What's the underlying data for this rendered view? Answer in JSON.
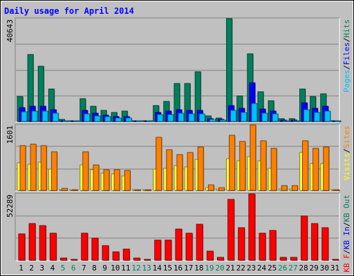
{
  "chart_data": [
    {
      "type": "bar",
      "panel": "hits",
      "title": "Daily usage for April 2014",
      "max_label": "40643",
      "ylim": [
        0,
        40643
      ],
      "grid": true,
      "categories": [
        "1",
        "2",
        "3",
        "4",
        "5",
        "6",
        "7",
        "8",
        "9",
        "10",
        "11",
        "12",
        "13",
        "14",
        "15",
        "16",
        "17",
        "18",
        "19",
        "20",
        "21",
        "22",
        "23",
        "24",
        "25",
        "26",
        "27",
        "28",
        "29",
        "30",
        "31"
      ],
      "weekend_days": [
        "5",
        "6",
        "12",
        "13",
        "19",
        "20",
        "26",
        "27"
      ],
      "ylabel_parts": [
        {
          "text": "Pages",
          "color": "#00c0ff"
        },
        {
          "text": "/",
          "color": "#000000"
        },
        {
          "text": "Files",
          "color": "#0000ff"
        },
        {
          "text": "/",
          "color": "#000000"
        },
        {
          "text": "Hits",
          "color": "#00805c"
        }
      ],
      "series": [
        {
          "name": "Hits",
          "color": "#00805c",
          "values": [
            9700,
            26500,
            21700,
            12700,
            700,
            300,
            8900,
            6000,
            4500,
            3500,
            4000,
            300,
            300,
            6400,
            7900,
            15000,
            15000,
            19600,
            2100,
            1400,
            40643,
            10100,
            26800,
            11700,
            8300,
            1000,
            1000,
            12700,
            9800,
            11000,
            0
          ]
        },
        {
          "name": "Files",
          "color": "#0000ff",
          "values": [
            5400,
            5900,
            5900,
            4700,
            400,
            200,
            4400,
            3200,
            2500,
            1900,
            1800,
            200,
            200,
            3600,
            4000,
            4700,
            4400,
            4400,
            1000,
            700,
            6400,
            5100,
            15400,
            4900,
            4200,
            500,
            500,
            7400,
            5100,
            6000,
            0
          ]
        },
        {
          "name": "Pages",
          "color": "#00c0ff",
          "values": [
            3900,
            4100,
            4100,
            3200,
            300,
            100,
            3100,
            2300,
            1800,
            1400,
            1300,
            100,
            100,
            2600,
            2800,
            3300,
            3100,
            3100,
            700,
            500,
            4500,
            3600,
            7000,
            3400,
            3000,
            400,
            400,
            4700,
            3600,
            4100,
            0
          ]
        }
      ]
    },
    {
      "type": "bar",
      "panel": "sites",
      "max_label": "1601",
      "ylim": [
        0,
        1601
      ],
      "grid": true,
      "categories": [
        "1",
        "2",
        "3",
        "4",
        "5",
        "6",
        "7",
        "8",
        "9",
        "10",
        "11",
        "12",
        "13",
        "14",
        "15",
        "16",
        "17",
        "18",
        "19",
        "20",
        "21",
        "22",
        "23",
        "24",
        "25",
        "26",
        "27",
        "28",
        "29",
        "30",
        "31"
      ],
      "ylabel_parts": [
        {
          "text": "Visits",
          "color": "#ffff00"
        },
        {
          "text": "/",
          "color": "#000000"
        },
        {
          "text": "Sites",
          "color": "#ff8000"
        }
      ],
      "series": [
        {
          "name": "Visits",
          "color": "#ffff40",
          "values": [
            680,
            640,
            690,
            530,
            20,
            10,
            630,
            500,
            420,
            400,
            350,
            15,
            15,
            520,
            540,
            600,
            580,
            760,
            60,
            40,
            770,
            720,
            830,
            720,
            540,
            30,
            30,
            930,
            660,
            660,
            0
          ]
        },
        {
          "name": "Sites",
          "color": "#ff8000",
          "values": [
            1100,
            1130,
            1100,
            940,
            50,
            25,
            940,
            620,
            510,
            510,
            490,
            25,
            25,
            1300,
            1000,
            880,
            930,
            1070,
            130,
            60,
            1350,
            1190,
            1601,
            1220,
            1020,
            110,
            110,
            1210,
            1030,
            1070,
            0
          ]
        }
      ]
    },
    {
      "type": "bar",
      "panel": "kbytes",
      "max_label": "52289",
      "ylim": [
        0,
        52289
      ],
      "grid": true,
      "categories": [
        "1",
        "2",
        "3",
        "4",
        "5",
        "6",
        "7",
        "8",
        "9",
        "10",
        "11",
        "12",
        "13",
        "14",
        "15",
        "16",
        "17",
        "18",
        "19",
        "20",
        "21",
        "22",
        "23",
        "24",
        "25",
        "26",
        "27",
        "28",
        "29",
        "30",
        "31"
      ],
      "ylabel_parts": [
        {
          "text": "KB F",
          "color": "#ff0000"
        },
        {
          "text": "/",
          "color": "#000000"
        },
        {
          "text": "KB In",
          "color": "#0000ff"
        },
        {
          "text": "/",
          "color": "#000000"
        },
        {
          "text": "KB Out",
          "color": "#00805c"
        }
      ],
      "series": [
        {
          "name": "KB F",
          "color": "#ff0000",
          "values": [
            20900,
            29000,
            27200,
            21300,
            1500,
            700,
            21300,
            17400,
            11300,
            6400,
            8800,
            1400,
            700,
            15600,
            15800,
            24600,
            21300,
            28100,
            7100,
            2200,
            47700,
            25800,
            52289,
            21300,
            23300,
            2100,
            2100,
            34600,
            29000,
            25800,
            0
          ]
        }
      ]
    }
  ]
}
